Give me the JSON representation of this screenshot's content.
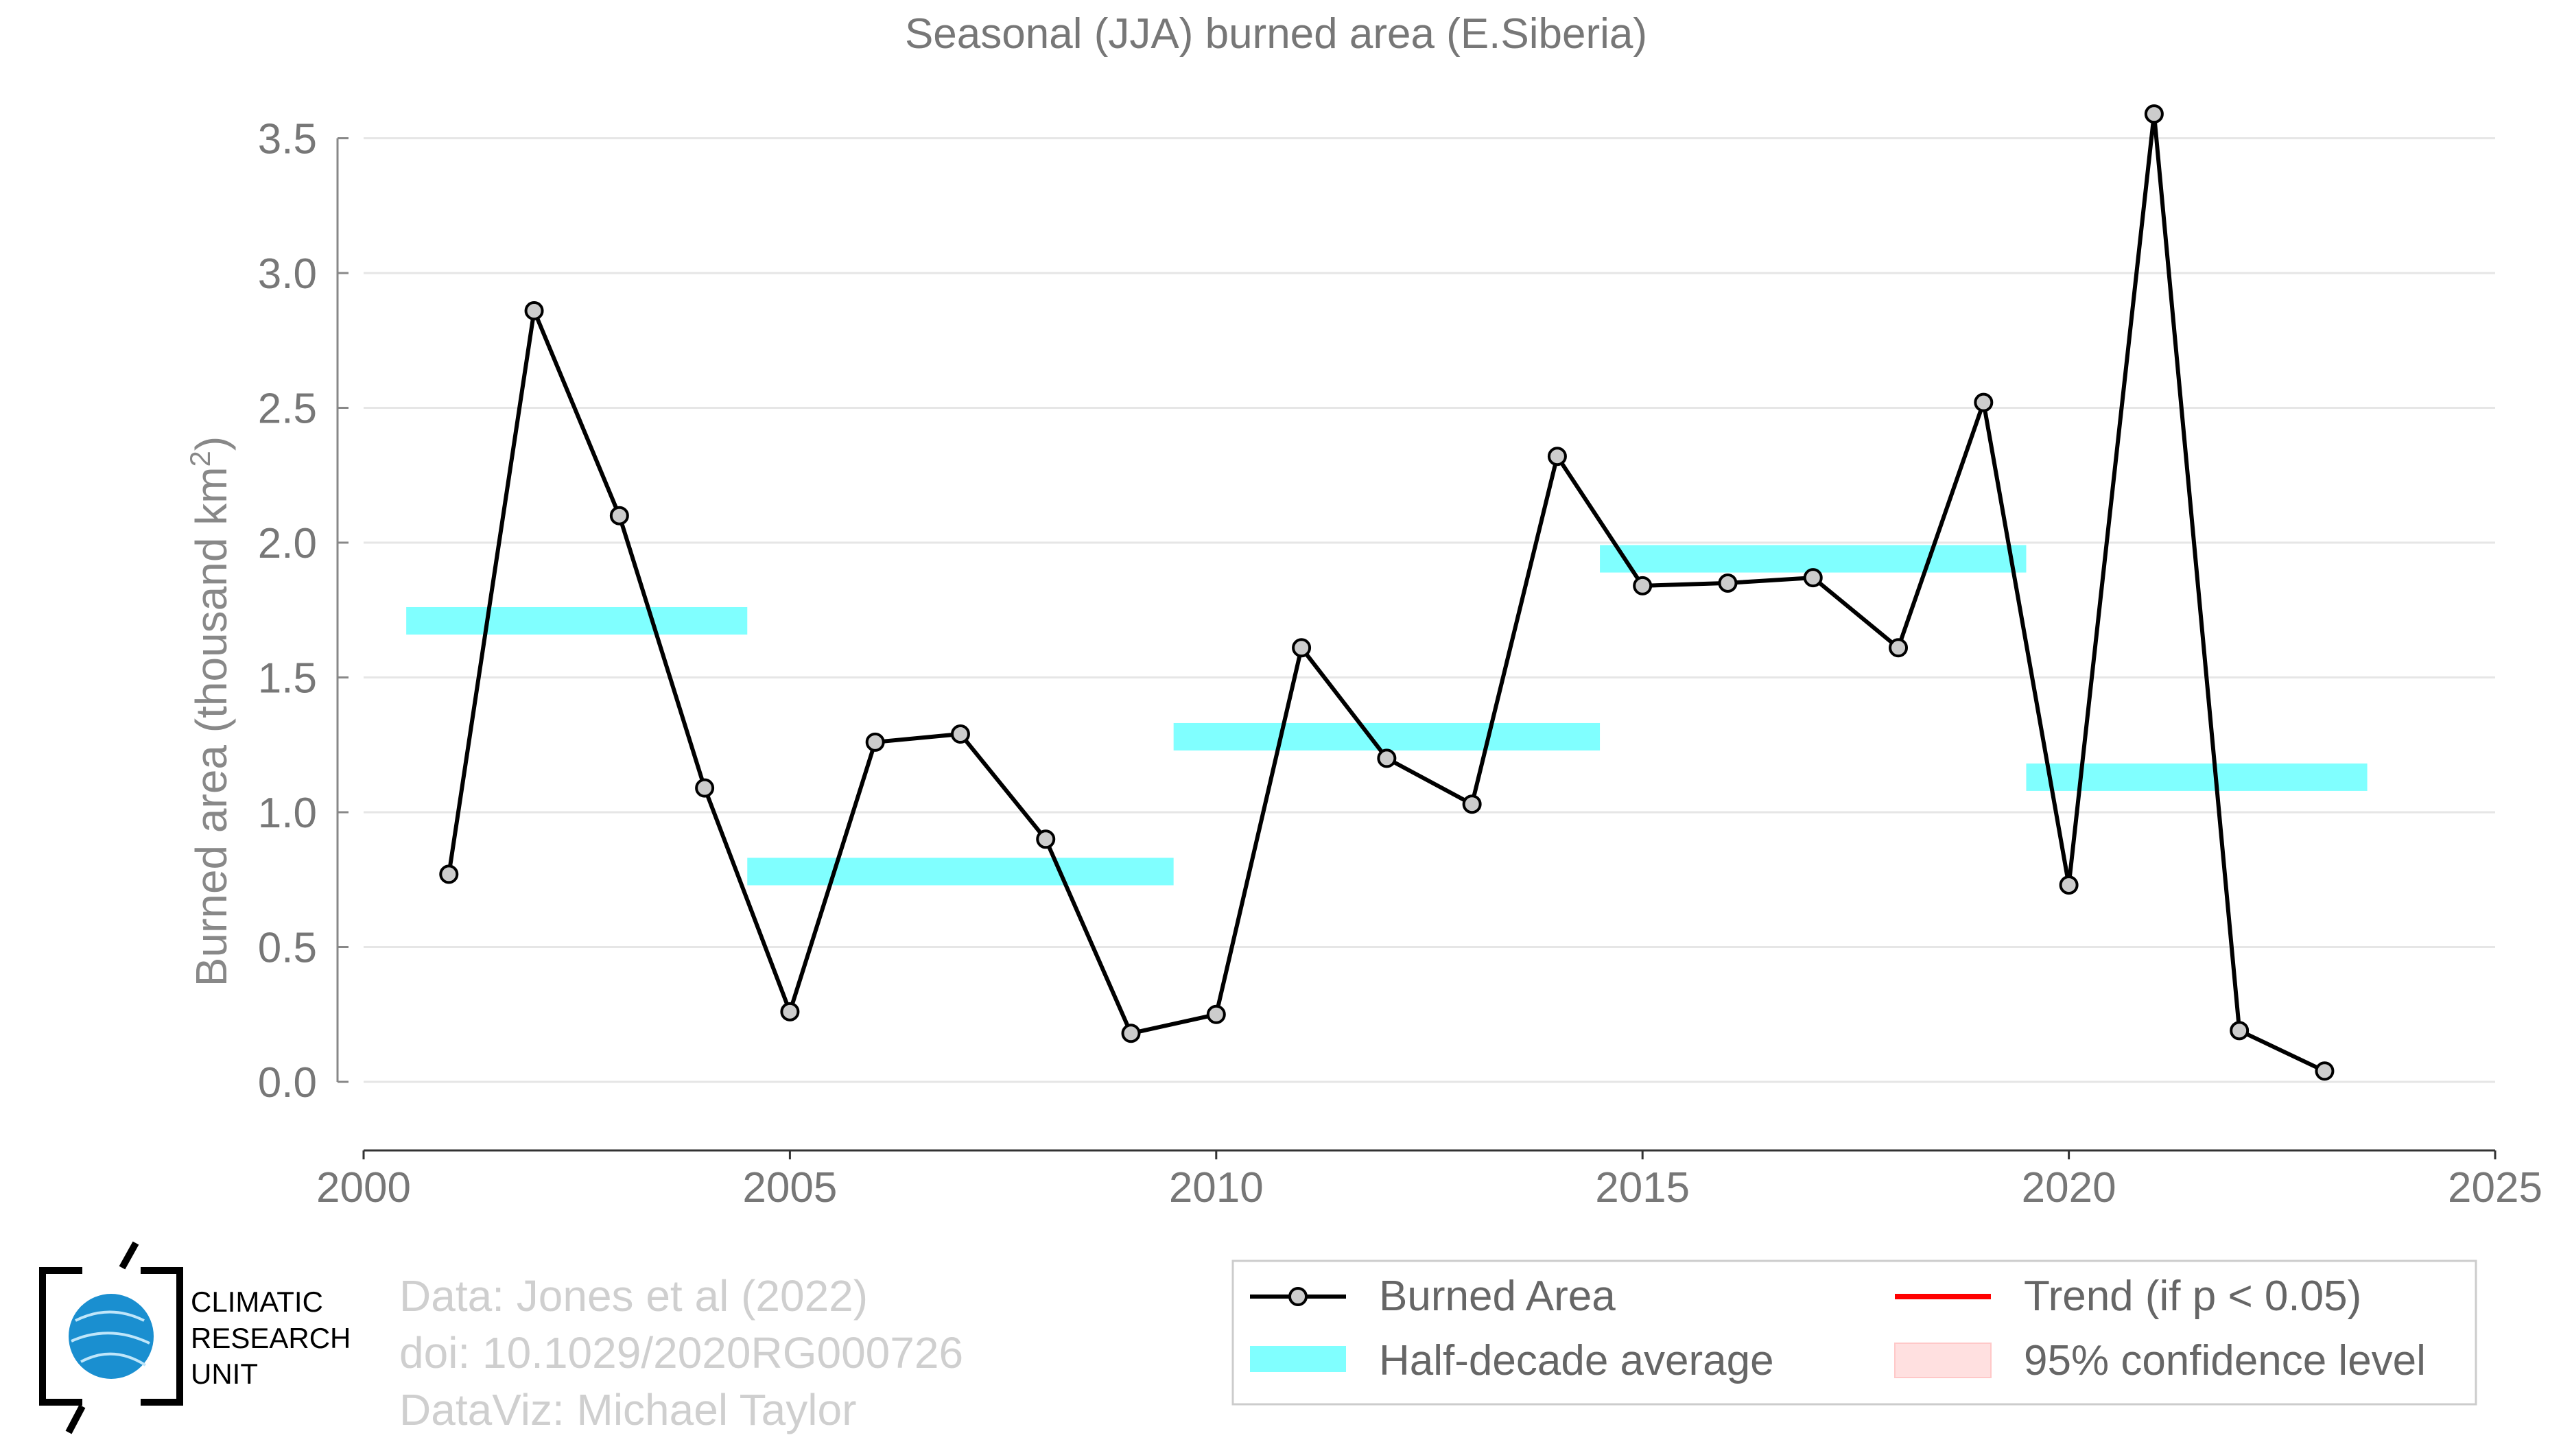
{
  "chart_data": {
    "type": "line",
    "title": "Seasonal (JJA) burned area (E.Siberia)",
    "ylabel": "Burned area (thousand km",
    "ylabel_sup": "2",
    "ylabel_close": ")",
    "xlim": [
      2000,
      2025
    ],
    "ylim": [
      -0.25,
      3.5
    ],
    "x_ticks": [
      2000,
      2005,
      2010,
      2015,
      2020,
      2025
    ],
    "y_ticks": [
      "0.0",
      "0.5",
      "1.0",
      "1.5",
      "2.0",
      "2.5",
      "3.0",
      "3.5"
    ],
    "grid": true,
    "series": [
      {
        "name": "Burned Area",
        "color": "#000000",
        "marker_fill": "#cccccc",
        "x": [
          2001,
          2002,
          2003,
          2004,
          2005,
          2006,
          2007,
          2008,
          2009,
          2010,
          2011,
          2012,
          2013,
          2014,
          2015,
          2016,
          2017,
          2018,
          2019,
          2020,
          2021,
          2022,
          2023
        ],
        "y": [
          0.77,
          2.86,
          2.1,
          1.09,
          0.26,
          1.26,
          1.29,
          0.9,
          0.18,
          0.25,
          1.61,
          1.2,
          1.03,
          2.32,
          1.84,
          1.85,
          1.87,
          1.61,
          2.52,
          0.73,
          3.59,
          0.19,
          0.04
        ]
      }
    ],
    "half_decade_average": {
      "name": "Half-decade average",
      "color": "#80ffff",
      "segments": [
        {
          "x0": 2000.5,
          "x1": 2004.5,
          "y": 1.71
        },
        {
          "x0": 2004.5,
          "x1": 2009.5,
          "y": 0.78
        },
        {
          "x0": 2009.5,
          "x1": 2014.5,
          "y": 1.28
        },
        {
          "x0": 2014.5,
          "x1": 2019.5,
          "y": 1.94
        },
        {
          "x0": 2019.5,
          "x1": 2023.5,
          "y": 1.13
        }
      ]
    },
    "legend": {
      "placement": "bottom-right",
      "items": [
        {
          "label": "Burned Area",
          "kind": "line-marker",
          "color": "#000000"
        },
        {
          "label": "Trend (if p < 0.05)",
          "kind": "line",
          "color": "#ff0000"
        },
        {
          "label": "Half-decade average",
          "kind": "band",
          "color": "#80ffff"
        },
        {
          "label": "95% confidence level",
          "kind": "patch",
          "color": "#ffe0e0"
        }
      ]
    }
  },
  "credits": {
    "data": "Data: Jones et al (2022)",
    "doi": "doi: 10.1029/2020RG000726",
    "dataviz": "DataViz: Michael Taylor"
  },
  "logo": {
    "line1": "CLIMATIC",
    "line2": "RESEARCH",
    "line3": "UNIT",
    "globe_color": "#1a8fd0"
  }
}
